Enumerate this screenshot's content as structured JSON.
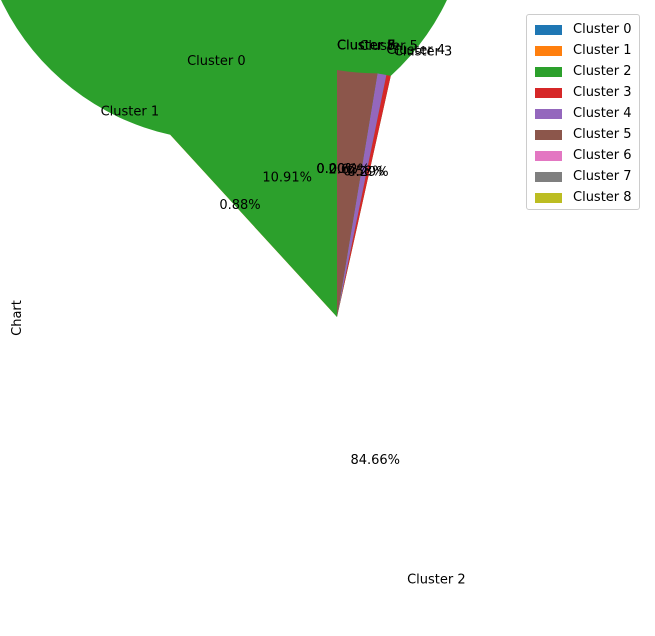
{
  "chart_data": {
    "type": "pie",
    "ylabel": "Chart",
    "slices": [
      {
        "label": "Cluster 0",
        "value": 10.91,
        "pct_label": "10.91%",
        "color": "#1f77b4"
      },
      {
        "label": "Cluster 1",
        "value": 0.88,
        "pct_label": "0.88%",
        "color": "#ff7f0e"
      },
      {
        "label": "Cluster 2",
        "value": 84.66,
        "pct_label": "84.66%",
        "color": "#2ca02c"
      },
      {
        "label": "Cluster 3",
        "value": 0.29,
        "pct_label": "0.29%",
        "color": "#d62728"
      },
      {
        "label": "Cluster 4",
        "value": 0.58,
        "pct_label": "0.58%",
        "color": "#9467bd"
      },
      {
        "label": "Cluster 5",
        "value": 2.62,
        "pct_label": "2.62%",
        "color": "#8c564b"
      },
      {
        "label": "Cluster 6",
        "value": 0.0,
        "pct_label": "0.00%",
        "color": "#e377c2"
      },
      {
        "label": "Cluster 7",
        "value": 0.0,
        "pct_label": "0.00%",
        "color": "#7f7f7f"
      },
      {
        "label": "Cluster 8",
        "value": 0.0,
        "pct_label": "0.00%",
        "color": "#bcbd22"
      }
    ],
    "legend": {
      "position": "top-right",
      "entries": [
        "Cluster 0",
        "Cluster 1",
        "Cluster 2",
        "Cluster 3",
        "Cluster 4",
        "Cluster 5",
        "Cluster 6",
        "Cluster 7",
        "Cluster 8"
      ]
    }
  }
}
